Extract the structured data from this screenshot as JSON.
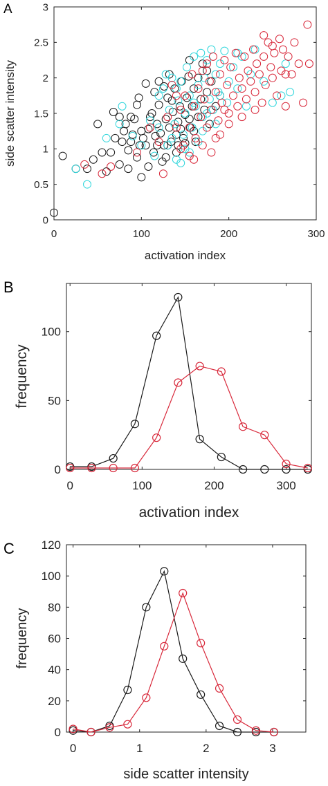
{
  "chart_data": [
    {
      "panel": "A",
      "type": "scatter",
      "xlabel": "activation  index",
      "ylabel": "side scatter intensity",
      "xlim": [
        0,
        300
      ],
      "ylim": [
        0,
        3
      ],
      "xticks": [
        "0",
        "100",
        "200",
        "300"
      ],
      "yticks": [
        "0",
        "0.5",
        "1",
        "1.5",
        "2",
        "2.5",
        "3"
      ],
      "grid": false,
      "series": [
        {
          "color": "#1a1a1a",
          "points": [
            [
              0,
              0.1
            ],
            [
              10,
              0.9
            ],
            [
              25,
              0.72
            ],
            [
              38,
              0.72
            ],
            [
              45,
              0.85
            ],
            [
              55,
              0.95
            ],
            [
              60,
              0.68
            ],
            [
              65,
              0.95
            ],
            [
              70,
              1.15
            ],
            [
              75,
              0.78
            ],
            [
              78,
              1.1
            ],
            [
              80,
              1.25
            ],
            [
              82,
              1.35
            ],
            [
              85,
              0.98
            ],
            [
              88,
              1.1
            ],
            [
              90,
              1.2
            ],
            [
              92,
              1.42
            ],
            [
              95,
              0.88
            ],
            [
              98,
              1.05
            ],
            [
              100,
              1.25
            ],
            [
              102,
              1.15
            ],
            [
              105,
              1.05
            ],
            [
              108,
              1.28
            ],
            [
              110,
              1.45
            ],
            [
              112,
              1.5
            ],
            [
              114,
              0.95
            ],
            [
              116,
              1.18
            ],
            [
              118,
              1.35
            ],
            [
              120,
              1.62
            ],
            [
              122,
              1.22
            ],
            [
              124,
              0.82
            ],
            [
              126,
              1.05
            ],
            [
              128,
              1.42
            ],
            [
              130,
              1.72
            ],
            [
              132,
              1.3
            ],
            [
              134,
              1.1
            ],
            [
              136,
              1.52
            ],
            [
              138,
              1.85
            ],
            [
              140,
              1.2
            ],
            [
              142,
              1.38
            ],
            [
              144,
              1.6
            ],
            [
              146,
              1.95
            ],
            [
              148,
              1.15
            ],
            [
              150,
              1.48
            ],
            [
              152,
              1.72
            ],
            [
              154,
              2.02
            ],
            [
              156,
              1.3
            ],
            [
              158,
              1.6
            ],
            [
              160,
              1.85
            ],
            [
              162,
              1.1
            ],
            [
              165,
              1.45
            ],
            [
              168,
              1.7
            ],
            [
              170,
              2.2
            ],
            [
              172,
              1.55
            ],
            [
              175,
              1.8
            ],
            [
              178,
              1.35
            ],
            [
              180,
              1.95
            ],
            [
              185,
              1.6
            ],
            [
              190,
              1.75
            ],
            [
              105,
              1.92
            ],
            [
              115,
              1.8
            ],
            [
              120,
              1.95
            ],
            [
              97,
              1.72
            ],
            [
              88,
              1.45
            ],
            [
              75,
              1.45
            ],
            [
              68,
              1.52
            ],
            [
              50,
              1.35
            ],
            [
              130,
              1.05
            ],
            [
              140,
              0.95
            ],
            [
              150,
              1.08
            ],
            [
              160,
              1.25
            ],
            [
              126,
              1.88
            ],
            [
              132,
              2.05
            ],
            [
              85,
              0.72
            ],
            [
              95,
              1.62
            ],
            [
              135,
              1.68
            ],
            [
              145,
              1.28
            ],
            [
              155,
              1.42
            ],
            [
              100,
              0.6
            ],
            [
              118,
              1.05
            ],
            [
              128,
              0.88
            ],
            [
              108,
              0.75
            ],
            [
              142,
              1.05
            ],
            [
              165,
              2.0
            ],
            [
              175,
              2.1
            ],
            [
              155,
              2.25
            ]
          ]
        },
        {
          "color": "#2fd6dc",
          "points": [
            [
              25,
              0.72
            ],
            [
              38,
              0.5
            ],
            [
              60,
              1.15
            ],
            [
              75,
              1.35
            ],
            [
              78,
              1.6
            ],
            [
              90,
              1.18
            ],
            [
              100,
              1.05
            ],
            [
              110,
              1.4
            ],
            [
              115,
              0.9
            ],
            [
              120,
              1.3
            ],
            [
              125,
              1.85
            ],
            [
              130,
              1.05
            ],
            [
              132,
              1.55
            ],
            [
              135,
              2.0
            ],
            [
              138,
              1.35
            ],
            [
              140,
              0.85
            ],
            [
              142,
              1.68
            ],
            [
              145,
              1.95
            ],
            [
              148,
              1.2
            ],
            [
              150,
              1.5
            ],
            [
              152,
              2.15
            ],
            [
              155,
              1.75
            ],
            [
              158,
              1.3
            ],
            [
              160,
              2.3
            ],
            [
              162,
              1.6
            ],
            [
              165,
              1.9
            ],
            [
              168,
              2.35
            ],
            [
              170,
              1.45
            ],
            [
              172,
              2.0
            ],
            [
              175,
              2.25
            ],
            [
              178,
              1.7
            ],
            [
              180,
              2.4
            ],
            [
              182,
              1.55
            ],
            [
              185,
              2.05
            ],
            [
              188,
              1.8
            ],
            [
              190,
              2.2
            ],
            [
              195,
              2.38
            ],
            [
              198,
              1.65
            ],
            [
              200,
              1.95
            ],
            [
              205,
              2.15
            ],
            [
              210,
              1.85
            ],
            [
              215,
              2.3
            ],
            [
              220,
              1.6
            ],
            [
              225,
              2.05
            ],
            [
              230,
              2.4
            ],
            [
              240,
              1.95
            ],
            [
              250,
              1.65
            ],
            [
              260,
              1.75
            ],
            [
              265,
              2.2
            ],
            [
              270,
              1.8
            ],
            [
              165,
              1.1
            ],
            [
              155,
              0.95
            ],
            [
              145,
              0.8
            ],
            [
              170,
              1.25
            ],
            [
              185,
              1.35
            ],
            [
              140,
              1.85
            ],
            [
              128,
              2.05
            ],
            [
              135,
              1.15
            ],
            [
              160,
              1.65
            ],
            [
              175,
              1.5
            ],
            [
              150,
              1.0
            ],
            [
              190,
              1.75
            ],
            [
              210,
              2.35
            ],
            [
              120,
              1.75
            ]
          ]
        },
        {
          "color": "#d8283a",
          "points": [
            [
              35,
              0.78
            ],
            [
              55,
              0.65
            ],
            [
              65,
              0.75
            ],
            [
              95,
              0.95
            ],
            [
              110,
              1.3
            ],
            [
              120,
              1.1
            ],
            [
              125,
              0.65
            ],
            [
              130,
              1.45
            ],
            [
              135,
              1.9
            ],
            [
              140,
              1.3
            ],
            [
              145,
              1.55
            ],
            [
              148,
              1.05
            ],
            [
              150,
              1.75
            ],
            [
              155,
              1.3
            ],
            [
              158,
              2.05
            ],
            [
              160,
              1.6
            ],
            [
              162,
              1.15
            ],
            [
              165,
              1.85
            ],
            [
              168,
              1.45
            ],
            [
              170,
              2.1
            ],
            [
              172,
              1.7
            ],
            [
              175,
              1.3
            ],
            [
              178,
              1.95
            ],
            [
              180,
              1.55
            ],
            [
              182,
              2.3
            ],
            [
              185,
              1.8
            ],
            [
              188,
              1.4
            ],
            [
              190,
              2.05
            ],
            [
              192,
              1.65
            ],
            [
              195,
              2.25
            ],
            [
              198,
              1.9
            ],
            [
              200,
              1.5
            ],
            [
              202,
              2.15
            ],
            [
              205,
              1.75
            ],
            [
              208,
              2.35
            ],
            [
              210,
              1.6
            ],
            [
              212,
              2.0
            ],
            [
              215,
              1.85
            ],
            [
              218,
              2.3
            ],
            [
              220,
              1.7
            ],
            [
              222,
              2.1
            ],
            [
              225,
              1.95
            ],
            [
              228,
              2.4
            ],
            [
              230,
              1.8
            ],
            [
              232,
              2.2
            ],
            [
              235,
              2.05
            ],
            [
              238,
              1.65
            ],
            [
              240,
              2.3
            ],
            [
              242,
              1.9
            ],
            [
              245,
              2.5
            ],
            [
              248,
              2.15
            ],
            [
              250,
              2.0
            ],
            [
              252,
              2.35
            ],
            [
              255,
              1.75
            ],
            [
              258,
              2.55
            ],
            [
              260,
              2.1
            ],
            [
              262,
              2.4
            ],
            [
              265,
              1.6
            ],
            [
              268,
              2.3
            ],
            [
              272,
              2.05
            ],
            [
              275,
              2.5
            ],
            [
              280,
              2.2
            ],
            [
              285,
              1.65
            ],
            [
              290,
              2.75
            ],
            [
              292,
              2.2
            ],
            [
              240,
              2.6
            ],
            [
              190,
              1.2
            ],
            [
              160,
              0.85
            ],
            [
              170,
              1.05
            ],
            [
              145,
              1.0
            ],
            [
              185,
              1.15
            ],
            [
              200,
              1.35
            ],
            [
              155,
              0.9
            ],
            [
              215,
              1.45
            ],
            [
              180,
              0.95
            ],
            [
              230,
              1.55
            ],
            [
              140,
              1.75
            ],
            [
              250,
              2.45
            ],
            [
              265,
              2.05
            ],
            [
              195,
              1.55
            ],
            [
              175,
              2.2
            ]
          ]
        }
      ]
    },
    {
      "panel": "B",
      "type": "line",
      "xlabel": "activation index",
      "ylabel": "frequency",
      "xlim": [
        -5,
        335
      ],
      "ylim": [
        0,
        135
      ],
      "xticks": [
        "0",
        "100",
        "200",
        "300"
      ],
      "yticks": [
        "0",
        "50",
        "100"
      ],
      "grid": false,
      "series": [
        {
          "color": "#1a1a1a",
          "x": [
            0,
            30,
            60,
            90,
            120,
            150,
            180,
            210,
            240,
            270,
            300,
            330
          ],
          "values": [
            2,
            2,
            8,
            33,
            97,
            125,
            22,
            9,
            0,
            0,
            0,
            0
          ],
          "markers_to": 8
        },
        {
          "color": "#d8283a",
          "x": [
            0,
            30,
            60,
            90,
            120,
            150,
            180,
            210,
            240,
            270,
            300,
            330
          ],
          "values": [
            1,
            1,
            1,
            1,
            23,
            63,
            75,
            71,
            31,
            25,
            4,
            1
          ]
        }
      ]
    },
    {
      "panel": "C",
      "type": "line",
      "xlabel": "side scatter intensity",
      "ylabel": "frequency",
      "xlim": [
        -0.1,
        3.5
      ],
      "ylim": [
        0,
        120
      ],
      "xticks": [
        "0",
        "1",
        "2",
        "3"
      ],
      "yticks": [
        "0",
        "20",
        "40",
        "60",
        "80",
        "100",
        "120"
      ],
      "grid": false,
      "series": [
        {
          "color": "#1a1a1a",
          "x": [
            0,
            0.27,
            0.55,
            0.82,
            1.1,
            1.37,
            1.65,
            1.92,
            2.2,
            2.47,
            2.75,
            3.02
          ],
          "values": [
            1,
            0,
            4,
            27,
            80,
            103,
            47,
            24,
            4,
            0,
            0,
            0
          ],
          "markers_to": 10
        },
        {
          "color": "#d8283a",
          "x": [
            0,
            0.27,
            0.55,
            0.82,
            1.1,
            1.37,
            1.65,
            1.92,
            2.2,
            2.47,
            2.75,
            3.02
          ],
          "values": [
            2,
            0,
            3,
            5,
            22,
            55,
            89,
            57,
            28,
            8,
            1,
            0
          ]
        }
      ]
    }
  ]
}
